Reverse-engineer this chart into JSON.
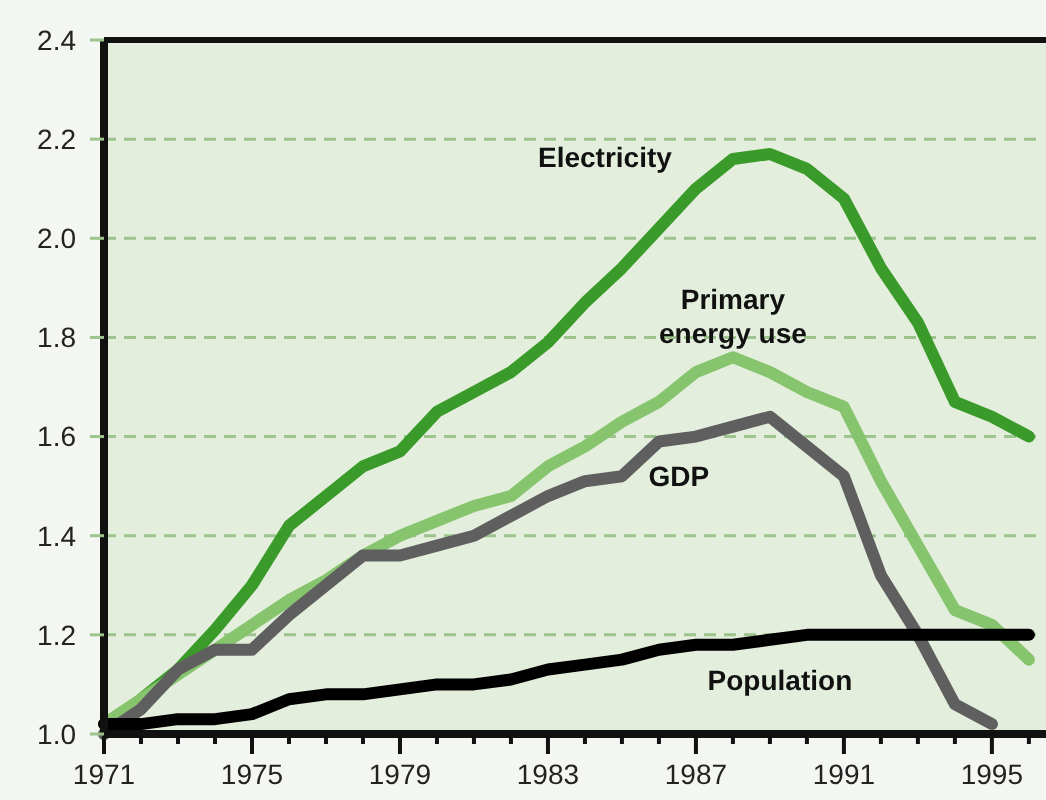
{
  "chart_data": {
    "type": "line",
    "x": [
      1971,
      1972,
      1973,
      1974,
      1975,
      1976,
      1977,
      1978,
      1979,
      1980,
      1981,
      1982,
      1983,
      1984,
      1985,
      1986,
      1987,
      1988,
      1989,
      1990,
      1991,
      1992,
      1993,
      1994,
      1995,
      1996
    ],
    "series": [
      {
        "name": "Electricity",
        "color": "#3a9a2a",
        "values": [
          1.0,
          1.07,
          1.13,
          1.21,
          1.3,
          1.42,
          1.48,
          1.54,
          1.57,
          1.65,
          1.69,
          1.73,
          1.79,
          1.87,
          1.94,
          2.02,
          2.1,
          2.16,
          2.17,
          2.14,
          2.08,
          1.94,
          1.83,
          1.67,
          1.64,
          1.6
        ]
      },
      {
        "name": "Primary energy use",
        "color": "#86c46e",
        "values": [
          1.02,
          1.07,
          1.12,
          1.17,
          1.22,
          1.27,
          1.31,
          1.36,
          1.4,
          1.43,
          1.46,
          1.48,
          1.54,
          1.58,
          1.63,
          1.67,
          1.73,
          1.76,
          1.73,
          1.69,
          1.66,
          1.51,
          1.38,
          1.25,
          1.22,
          1.15
        ]
      },
      {
        "name": "GDP",
        "color": "#5f5f5f",
        "values": [
          1.0,
          1.05,
          1.13,
          1.17,
          1.17,
          1.24,
          1.3,
          1.36,
          1.36,
          1.38,
          1.4,
          1.44,
          1.48,
          1.51,
          1.52,
          1.59,
          1.6,
          1.62,
          1.64,
          1.58,
          1.52,
          1.32,
          1.2,
          1.06,
          1.02,
          null
        ]
      },
      {
        "name": "Population",
        "color": "#000000",
        "values": [
          1.02,
          1.02,
          1.03,
          1.03,
          1.04,
          1.07,
          1.08,
          1.08,
          1.09,
          1.1,
          1.1,
          1.11,
          1.13,
          1.14,
          1.15,
          1.17,
          1.18,
          1.18,
          1.19,
          1.2,
          1.2,
          1.2,
          1.2,
          1.2,
          1.2,
          1.2
        ]
      }
    ],
    "xlim": [
      1971,
      1996.3
    ],
    "xticks": [
      1971,
      {
        "value": 1972,
        "label": null
      },
      {
        "value": 1973,
        "label": null
      },
      {
        "value": 1974,
        "label": null
      },
      1975,
      {
        "value": 1976,
        "label": null
      },
      {
        "value": 1977,
        "label": null
      },
      {
        "value": 1978,
        "label": null
      },
      1979,
      {
        "value": 1980,
        "label": null
      },
      {
        "value": 1981,
        "label": null
      },
      {
        "value": 1982,
        "label": null
      },
      1983,
      {
        "value": 1984,
        "label": null
      },
      {
        "value": 1985,
        "label": null
      },
      {
        "value": 1986,
        "label": null
      },
      1987,
      {
        "value": 1988,
        "label": null
      },
      {
        "value": 1989,
        "label": null
      },
      {
        "value": 1990,
        "label": null
      },
      1991,
      {
        "value": 1992,
        "label": null
      },
      {
        "value": 1993,
        "label": null
      },
      {
        "value": 1994,
        "label": null
      },
      1995,
      {
        "value": 1996,
        "label": null
      }
    ],
    "ylim": [
      1.0,
      2.4
    ],
    "yticks": [
      {
        "value": 1.0,
        "label": "1.0"
      },
      {
        "value": 1.2,
        "label": "1.2"
      },
      {
        "value": 1.4,
        "label": "1.4"
      },
      {
        "value": 1.6,
        "label": "1.6"
      },
      {
        "value": 1.8,
        "label": "1.8"
      },
      {
        "value": 2.0,
        "label": "2.0"
      },
      {
        "value": 2.2,
        "label": "2.2"
      },
      {
        "value": 2.4,
        "label": "2.4"
      }
    ],
    "grid": "y",
    "legend": false,
    "marker": "none",
    "line_style": "solid"
  }
}
